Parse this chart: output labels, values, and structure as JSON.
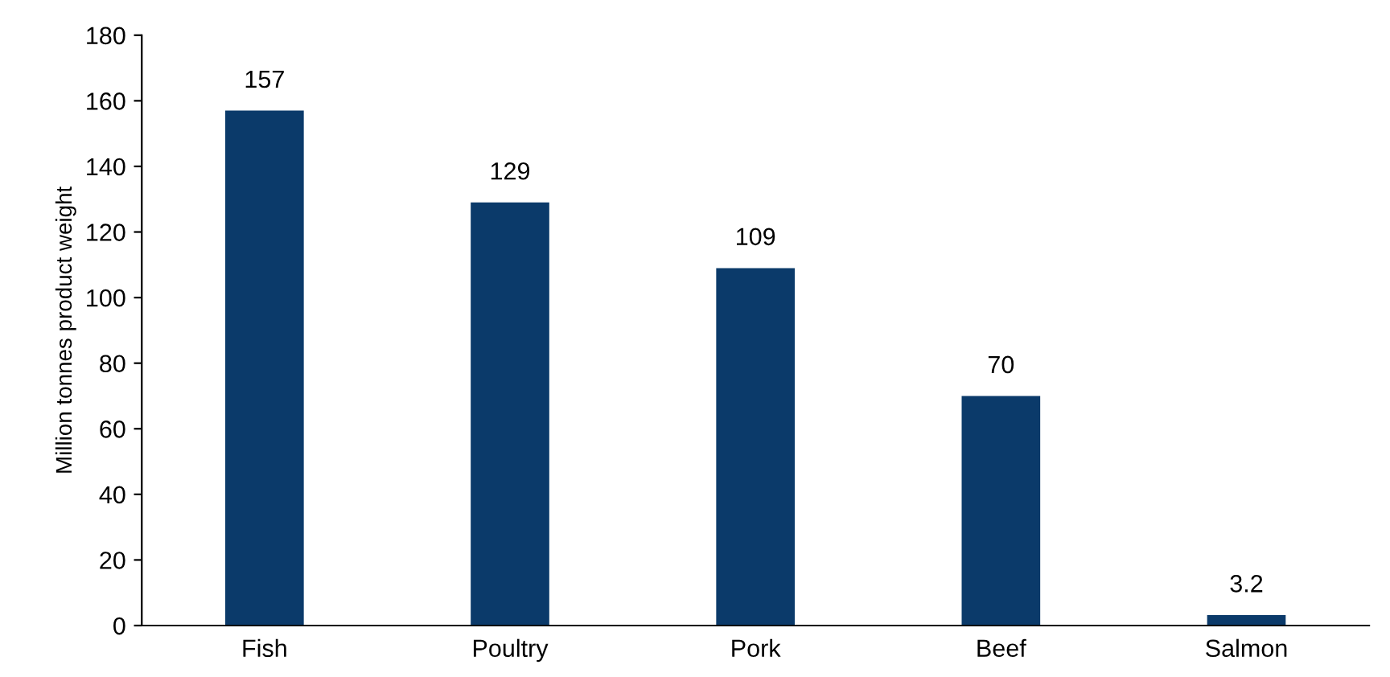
{
  "chart_data": {
    "type": "bar",
    "ylabel": "Million tonnes product weight",
    "categories": [
      "Fish",
      "Poultry",
      "Pork",
      "Beef",
      "Salmon"
    ],
    "values": [
      157,
      129,
      109,
      70,
      3.2
    ],
    "color": "#0b3a6a",
    "ylim": [
      0,
      180
    ],
    "yticks": [
      0,
      20,
      40,
      60,
      80,
      100,
      120,
      140,
      160,
      180
    ],
    "data_labels": true,
    "grid": false,
    "legend": false
  }
}
